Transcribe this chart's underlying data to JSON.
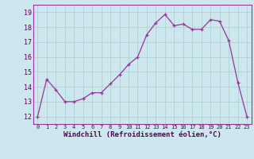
{
  "x": [
    0,
    1,
    2,
    3,
    4,
    5,
    6,
    7,
    8,
    9,
    10,
    11,
    12,
    13,
    14,
    15,
    16,
    17,
    18,
    19,
    20,
    21,
    22,
    23
  ],
  "y": [
    12.0,
    14.5,
    13.8,
    13.0,
    13.0,
    13.2,
    13.6,
    13.6,
    14.2,
    14.8,
    15.5,
    16.0,
    17.5,
    18.3,
    18.85,
    18.1,
    18.2,
    17.85,
    17.85,
    18.5,
    18.4,
    17.1,
    14.3,
    12.0
  ],
  "line_color": "#993399",
  "marker_color": "#993399",
  "bg_color": "#cce8ee",
  "grid_color": "#aacccc",
  "xlabel": "Windchill (Refroidissement éolien,°C)",
  "ylim": [
    11.5,
    19.5
  ],
  "xlim": [
    -0.5,
    23.5
  ],
  "yticks": [
    12,
    13,
    14,
    15,
    16,
    17,
    18,
    19
  ],
  "xticks": [
    0,
    1,
    2,
    3,
    4,
    5,
    6,
    7,
    8,
    9,
    10,
    11,
    12,
    13,
    14,
    15,
    16,
    17,
    18,
    19,
    20,
    21,
    22,
    23
  ]
}
